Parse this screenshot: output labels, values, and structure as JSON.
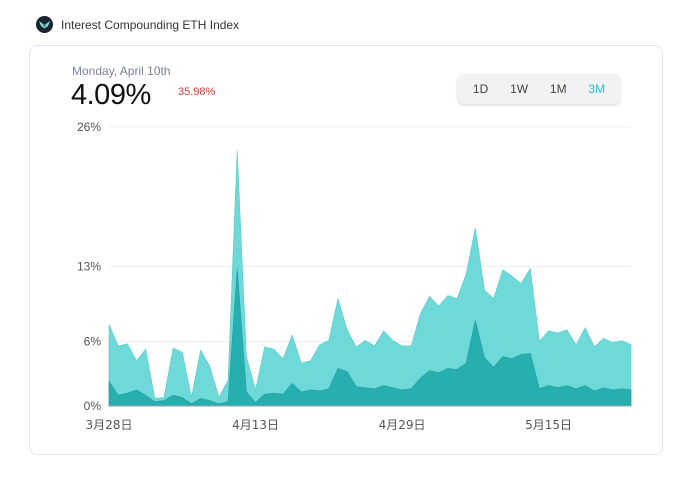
{
  "header": {
    "title": "Interest Compounding ETH Index",
    "logo_icon": "bird-logo-icon"
  },
  "summary": {
    "date": "Monday, April 10th",
    "value": "4.09%",
    "change": "35.98%",
    "change_color": "#d33a3a"
  },
  "range": {
    "options": [
      "1D",
      "1W",
      "1M",
      "3M"
    ],
    "active": "3M",
    "active_color": "#2cc0c5"
  },
  "chart_data": {
    "type": "area",
    "y_ticks": [
      "26%",
      "13%",
      "6%",
      "0%"
    ],
    "y_tick_values": [
      26,
      13,
      6,
      0
    ],
    "ylim": [
      0,
      26
    ],
    "x_ticks": [
      "3月28日",
      "4月13日",
      "4月29日",
      "5月15日"
    ],
    "x_tick_indices": [
      0,
      16,
      32,
      48
    ],
    "grid": true,
    "colors": {
      "outer": "#6fd9d9",
      "inner": "#27aeae"
    },
    "days": 58,
    "series": [
      {
        "values": [
          7.6,
          5.6,
          5.8,
          4.2,
          5.3,
          0.7,
          0.8,
          5.4,
          5.0,
          0.8,
          5.2,
          3.7,
          0.8,
          2.4,
          23.8,
          4.6,
          1.5,
          5.5,
          5.3,
          4.4,
          6.6,
          4.0,
          4.2,
          5.7,
          6.1,
          10.0,
          7.1,
          5.5,
          6.1,
          5.6,
          7.0,
          6.1,
          5.6,
          5.6,
          8.6,
          10.2,
          9.3,
          10.3,
          10.0,
          12.3,
          16.6,
          10.8,
          10.0,
          12.7,
          12.1,
          11.4,
          12.8,
          6.0,
          7.0,
          6.8,
          7.1,
          5.7,
          7.3,
          5.5,
          6.3,
          5.9,
          6.1,
          5.7
        ]
      },
      {
        "values": [
          2.3,
          1.0,
          1.2,
          1.5,
          1.0,
          0.4,
          0.5,
          1.0,
          0.8,
          0.2,
          0.7,
          0.5,
          0.2,
          0.4,
          12.8,
          1.3,
          0.3,
          1.1,
          1.2,
          1.1,
          2.1,
          1.3,
          1.5,
          1.4,
          1.6,
          3.5,
          3.2,
          1.8,
          1.7,
          1.6,
          1.9,
          1.7,
          1.5,
          1.6,
          2.6,
          3.3,
          3.1,
          3.5,
          3.4,
          4.0,
          8.0,
          4.5,
          3.6,
          4.6,
          4.4,
          4.8,
          4.9,
          1.6,
          1.9,
          1.7,
          1.9,
          1.6,
          1.9,
          1.4,
          1.7,
          1.5,
          1.6,
          1.5
        ]
      }
    ]
  }
}
